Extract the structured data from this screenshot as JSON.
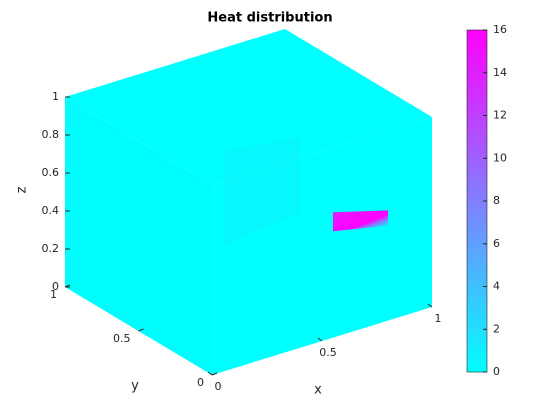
{
  "chart_data": {
    "type": "volume",
    "title": "Heat distribution",
    "xlabel": "x",
    "ylabel": "y",
    "zlabel": "z",
    "xlim": [
      0,
      1
    ],
    "ylim": [
      0,
      1
    ],
    "zlim": [
      0,
      1
    ],
    "xticks": [
      0,
      0.5,
      1
    ],
    "yticks": [
      0,
      0.5,
      1
    ],
    "zticks": [
      0,
      0.2,
      0.4,
      0.6,
      0.8,
      1
    ],
    "colorbar": {
      "lim": [
        0,
        16
      ],
      "ticks": [
        0,
        2,
        4,
        6,
        8,
        10,
        12,
        14,
        16
      ],
      "colormap": [
        "#00ffff",
        "#ff00ff"
      ]
    }
  }
}
